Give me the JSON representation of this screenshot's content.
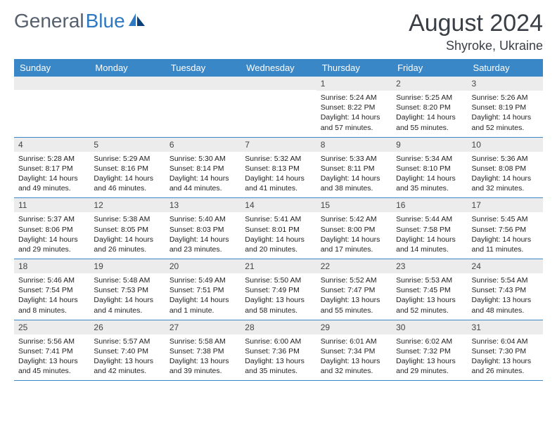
{
  "logo": {
    "word1": "General",
    "word2": "Blue"
  },
  "title": "August 2024",
  "location": "Shyroke, Ukraine",
  "colors": {
    "header_bg": "#3a87c8",
    "header_text": "#ffffff",
    "daynum_bg": "#ececec",
    "title_text": "#3a3f46",
    "logo_gray": "#555f6e",
    "logo_blue": "#2f79c2"
  },
  "day_headers": [
    "Sunday",
    "Monday",
    "Tuesday",
    "Wednesday",
    "Thursday",
    "Friday",
    "Saturday"
  ],
  "weeks": [
    [
      {
        "blank": true
      },
      {
        "blank": true
      },
      {
        "blank": true
      },
      {
        "blank": true
      },
      {
        "n": "1",
        "sunrise": "5:24 AM",
        "sunset": "8:22 PM",
        "daylight": "14 hours and 57 minutes."
      },
      {
        "n": "2",
        "sunrise": "5:25 AM",
        "sunset": "8:20 PM",
        "daylight": "14 hours and 55 minutes."
      },
      {
        "n": "3",
        "sunrise": "5:26 AM",
        "sunset": "8:19 PM",
        "daylight": "14 hours and 52 minutes."
      }
    ],
    [
      {
        "n": "4",
        "sunrise": "5:28 AM",
        "sunset": "8:17 PM",
        "daylight": "14 hours and 49 minutes."
      },
      {
        "n": "5",
        "sunrise": "5:29 AM",
        "sunset": "8:16 PM",
        "daylight": "14 hours and 46 minutes."
      },
      {
        "n": "6",
        "sunrise": "5:30 AM",
        "sunset": "8:14 PM",
        "daylight": "14 hours and 44 minutes."
      },
      {
        "n": "7",
        "sunrise": "5:32 AM",
        "sunset": "8:13 PM",
        "daylight": "14 hours and 41 minutes."
      },
      {
        "n": "8",
        "sunrise": "5:33 AM",
        "sunset": "8:11 PM",
        "daylight": "14 hours and 38 minutes."
      },
      {
        "n": "9",
        "sunrise": "5:34 AM",
        "sunset": "8:10 PM",
        "daylight": "14 hours and 35 minutes."
      },
      {
        "n": "10",
        "sunrise": "5:36 AM",
        "sunset": "8:08 PM",
        "daylight": "14 hours and 32 minutes."
      }
    ],
    [
      {
        "n": "11",
        "sunrise": "5:37 AM",
        "sunset": "8:06 PM",
        "daylight": "14 hours and 29 minutes."
      },
      {
        "n": "12",
        "sunrise": "5:38 AM",
        "sunset": "8:05 PM",
        "daylight": "14 hours and 26 minutes."
      },
      {
        "n": "13",
        "sunrise": "5:40 AM",
        "sunset": "8:03 PM",
        "daylight": "14 hours and 23 minutes."
      },
      {
        "n": "14",
        "sunrise": "5:41 AM",
        "sunset": "8:01 PM",
        "daylight": "14 hours and 20 minutes."
      },
      {
        "n": "15",
        "sunrise": "5:42 AM",
        "sunset": "8:00 PM",
        "daylight": "14 hours and 17 minutes."
      },
      {
        "n": "16",
        "sunrise": "5:44 AM",
        "sunset": "7:58 PM",
        "daylight": "14 hours and 14 minutes."
      },
      {
        "n": "17",
        "sunrise": "5:45 AM",
        "sunset": "7:56 PM",
        "daylight": "14 hours and 11 minutes."
      }
    ],
    [
      {
        "n": "18",
        "sunrise": "5:46 AM",
        "sunset": "7:54 PM",
        "daylight": "14 hours and 8 minutes."
      },
      {
        "n": "19",
        "sunrise": "5:48 AM",
        "sunset": "7:53 PM",
        "daylight": "14 hours and 4 minutes."
      },
      {
        "n": "20",
        "sunrise": "5:49 AM",
        "sunset": "7:51 PM",
        "daylight": "14 hours and 1 minute."
      },
      {
        "n": "21",
        "sunrise": "5:50 AM",
        "sunset": "7:49 PM",
        "daylight": "13 hours and 58 minutes."
      },
      {
        "n": "22",
        "sunrise": "5:52 AM",
        "sunset": "7:47 PM",
        "daylight": "13 hours and 55 minutes."
      },
      {
        "n": "23",
        "sunrise": "5:53 AM",
        "sunset": "7:45 PM",
        "daylight": "13 hours and 52 minutes."
      },
      {
        "n": "24",
        "sunrise": "5:54 AM",
        "sunset": "7:43 PM",
        "daylight": "13 hours and 48 minutes."
      }
    ],
    [
      {
        "n": "25",
        "sunrise": "5:56 AM",
        "sunset": "7:41 PM",
        "daylight": "13 hours and 45 minutes."
      },
      {
        "n": "26",
        "sunrise": "5:57 AM",
        "sunset": "7:40 PM",
        "daylight": "13 hours and 42 minutes."
      },
      {
        "n": "27",
        "sunrise": "5:58 AM",
        "sunset": "7:38 PM",
        "daylight": "13 hours and 39 minutes."
      },
      {
        "n": "28",
        "sunrise": "6:00 AM",
        "sunset": "7:36 PM",
        "daylight": "13 hours and 35 minutes."
      },
      {
        "n": "29",
        "sunrise": "6:01 AM",
        "sunset": "7:34 PM",
        "daylight": "13 hours and 32 minutes."
      },
      {
        "n": "30",
        "sunrise": "6:02 AM",
        "sunset": "7:32 PM",
        "daylight": "13 hours and 29 minutes."
      },
      {
        "n": "31",
        "sunrise": "6:04 AM",
        "sunset": "7:30 PM",
        "daylight": "13 hours and 26 minutes."
      }
    ]
  ],
  "labels": {
    "sunrise": "Sunrise:",
    "sunset": "Sunset:",
    "daylight": "Daylight:"
  }
}
